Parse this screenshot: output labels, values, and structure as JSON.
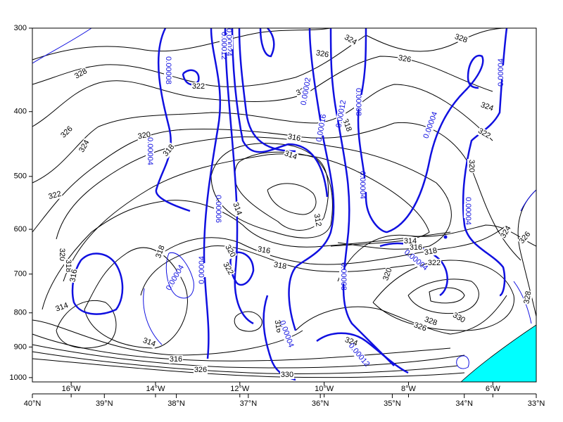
{
  "chart_data": {
    "type": "contour",
    "ylim": [
      300,
      1015
    ],
    "ylog": true,
    "yticks": [
      300,
      400,
      500,
      600,
      700,
      800,
      900,
      1000
    ],
    "xlim": [
      -16.92,
      -4.97
    ],
    "xticks": [
      {
        "value": -16,
        "label": "16°W"
      },
      {
        "value": -14,
        "label": "14°W"
      },
      {
        "value": -12,
        "label": "12°W"
      },
      {
        "value": -10,
        "label": "10°W"
      },
      {
        "value": -8,
        "label": "8°W"
      },
      {
        "value": -6,
        "label": "6°W"
      }
    ],
    "x2lim": [
      40,
      33
    ],
    "x2ticks": [
      {
        "value": 40,
        "label": "40°N"
      },
      {
        "value": 39,
        "label": "39°N"
      },
      {
        "value": 38,
        "label": "38°N"
      },
      {
        "value": 37,
        "label": "37°N"
      },
      {
        "value": 36,
        "label": "36°N"
      },
      {
        "value": 35,
        "label": "35°N"
      },
      {
        "value": 34,
        "label": "34°N"
      },
      {
        "value": 33,
        "label": "33°N"
      }
    ],
    "contour_labels": [
      "328",
      "326",
      "324",
      "322",
      "320",
      "318",
      "316",
      "314",
      "314",
      "316",
      "326",
      "330",
      "322",
      "320",
      "318",
      "316",
      "314",
      "312",
      "314",
      "316",
      "318",
      "320",
      "322",
      "318",
      "326",
      "326",
      "328",
      "324",
      "322",
      "324",
      "322",
      "320",
      "314",
      "316",
      "318",
      "322",
      "320",
      "324",
      "326",
      "328",
      "330",
      "328",
      "326",
      "324",
      "318",
      "316"
    ],
    "blue_labels": [
      "0.00008",
      "0.00004",
      "0.00024",
      "0.00012",
      "0.00002",
      "0.00016",
      "0.00012",
      "0.00008",
      "0.00004",
      "0.00004",
      "0.00004",
      "0.00004",
      "0.00006",
      "0.00004",
      "0.00004",
      "0.00008",
      "0.00004",
      "0.00004",
      "0.00012"
    ],
    "contour_color": "#000000",
    "blue_color": "#1010e0",
    "terrain_color": "#00ffff"
  }
}
